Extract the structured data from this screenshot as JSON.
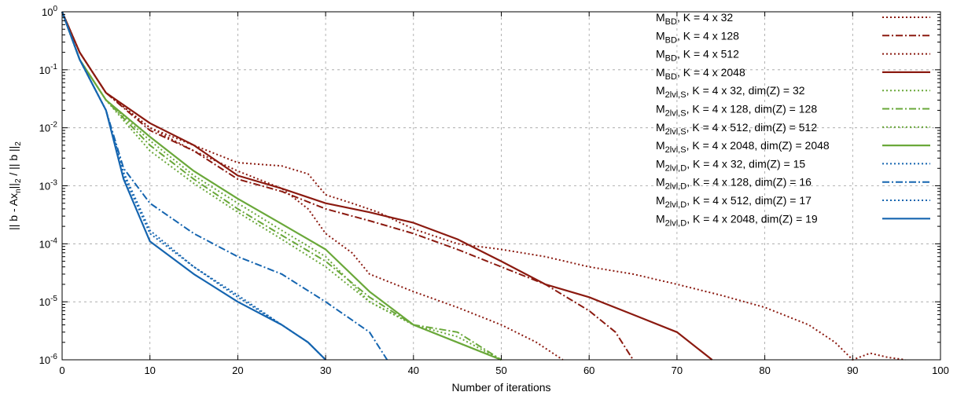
{
  "chart_data": {
    "type": "line",
    "xlabel": "Number of iterations",
    "ylabel": "|| b - Ax_n||_2 / || b ||_2",
    "xlim": [
      0,
      100
    ],
    "ylim": [
      1e-06,
      1
    ],
    "yscale": "log",
    "grid": true,
    "legend_position": "top-right",
    "x_ticks": [
      "0",
      "10",
      "20",
      "30",
      "40",
      "50",
      "60",
      "70",
      "80",
      "90",
      "100"
    ],
    "y_ticks": [
      {
        "base": "10",
        "exp": "0"
      },
      {
        "base": "10",
        "exp": "-1"
      },
      {
        "base": "10",
        "exp": "-2"
      },
      {
        "base": "10",
        "exp": "-3"
      },
      {
        "base": "10",
        "exp": "-4"
      },
      {
        "base": "10",
        "exp": "-5"
      },
      {
        "base": "10",
        "exp": "-6"
      }
    ],
    "colors": {
      "red": "#8b1a10",
      "green": "#6aa83a",
      "blue": "#1565b0"
    },
    "series": [
      {
        "name": "M_BD, K = 4 x 32",
        "label_main": "M",
        "label_sub": "BD",
        "label_rest": ", K = 4 x 32",
        "color": "#8b1a10",
        "dash": "dotted",
        "x": [
          0,
          2,
          5,
          10,
          15,
          20,
          25,
          28,
          30,
          33,
          35,
          40,
          45,
          50,
          54,
          57
        ],
        "y": [
          1,
          0.2,
          0.04,
          0.01,
          0.004,
          0.0018,
          0.0009,
          0.0004,
          0.00015,
          7e-05,
          3e-05,
          1.5e-05,
          8e-06,
          4e-06,
          2e-06,
          1e-06
        ]
      },
      {
        "name": "M_BD, K = 4 x 128",
        "label_main": "M",
        "label_sub": "BD",
        "label_rest": ", K = 4 x 128",
        "color": "#8b1a10",
        "dash": "dashdot",
        "x": [
          0,
          2,
          5,
          10,
          15,
          20,
          25,
          30,
          35,
          40,
          45,
          50,
          55,
          60,
          63,
          65
        ],
        "y": [
          1,
          0.2,
          0.04,
          0.009,
          0.004,
          0.0013,
          0.0008,
          0.0004,
          0.00025,
          0.00015,
          8e-05,
          4e-05,
          2e-05,
          7e-06,
          3e-06,
          1e-06
        ]
      },
      {
        "name": "M_BD, K = 4 x 512",
        "label_main": "M",
        "label_sub": "BD",
        "label_rest": ", K = 4 x 512",
        "color": "#8b1a10",
        "dash": "dotted",
        "x": [
          0,
          2,
          5,
          10,
          15,
          20,
          25,
          28,
          30,
          33,
          36,
          40,
          45,
          50,
          55,
          60,
          65,
          70,
          75,
          80,
          85,
          88,
          90,
          92,
          94,
          96
        ],
        "y": [
          1,
          0.2,
          0.04,
          0.01,
          0.005,
          0.0025,
          0.0022,
          0.0016,
          0.0007,
          0.0005,
          0.00035,
          0.00018,
          0.0001,
          8e-05,
          6e-05,
          4e-05,
          3e-05,
          2e-05,
          1.3e-05,
          8e-06,
          4e-06,
          2e-06,
          1e-06,
          1.3e-06,
          1.1e-06,
          1e-06
        ]
      },
      {
        "name": "M_BD, K = 4 x 2048",
        "label_main": "M",
        "label_sub": "BD",
        "label_rest": ", K = 4 x 2048",
        "color": "#8b1a10",
        "dash": "solid",
        "x": [
          0,
          2,
          5,
          10,
          15,
          20,
          25,
          30,
          35,
          40,
          45,
          50,
          55,
          60,
          65,
          70,
          74
        ],
        "y": [
          1,
          0.2,
          0.04,
          0.012,
          0.005,
          0.0015,
          0.0009,
          0.0005,
          0.00035,
          0.00023,
          0.00012,
          5e-05,
          2e-05,
          1.2e-05,
          6e-06,
          3e-06,
          1e-06
        ]
      },
      {
        "name": "M_2lvl,S, K = 4 x 32, dim(Z) = 32",
        "label_main": "M",
        "label_sub": "2lvl,S",
        "label_rest": ", K = 4 x 32, dim(Z) = 32",
        "color": "#6aa83a",
        "dash": "dotted",
        "x": [
          0,
          2,
          5,
          10,
          15,
          20,
          25,
          30,
          35,
          40,
          45,
          50
        ],
        "y": [
          1,
          0.15,
          0.03,
          0.006,
          0.0015,
          0.0005,
          0.00017,
          6e-05,
          1e-05,
          4e-06,
          2e-06,
          1e-06
        ]
      },
      {
        "name": "M_2lvl,S, K = 4 x 128, dim(Z) = 128",
        "label_main": "M",
        "label_sub": "2lvl,S",
        "label_rest": ", K = 4 x 128, dim(Z) = 128",
        "color": "#6aa83a",
        "dash": "dashdot",
        "x": [
          0,
          2,
          5,
          10,
          15,
          20,
          25,
          30,
          35,
          40,
          45,
          50
        ],
        "y": [
          1,
          0.15,
          0.03,
          0.005,
          0.0013,
          0.0004,
          0.00014,
          5e-05,
          1.2e-05,
          4e-06,
          3e-06,
          1e-06
        ]
      },
      {
        "name": "M_2lvl,S, K = 4 x 512, dim(Z) = 512",
        "label_main": "M",
        "label_sub": "2lvl,S",
        "label_rest": ", K = 4 x 512, dim(Z) = 512",
        "color": "#6aa83a",
        "dash": "dotted",
        "x": [
          0,
          2,
          5,
          10,
          15,
          20,
          25,
          30,
          35,
          40,
          45,
          50
        ],
        "y": [
          1,
          0.15,
          0.03,
          0.004,
          0.0011,
          0.00035,
          0.00012,
          4e-05,
          1e-05,
          4e-06,
          2.5e-06,
          1e-06
        ]
      },
      {
        "name": "M_2lvl,S, K = 4 x 2048, dim(Z) = 2048",
        "label_main": "M",
        "label_sub": "2lvl,S",
        "label_rest": ", K = 4 x 2048, dim(Z) = 2048",
        "color": "#6aa83a",
        "dash": "solid",
        "x": [
          0,
          2,
          5,
          10,
          15,
          20,
          25,
          30,
          35,
          40,
          45,
          50
        ],
        "y": [
          1,
          0.15,
          0.03,
          0.007,
          0.0018,
          0.0006,
          0.00022,
          8e-05,
          1.5e-05,
          4e-06,
          2e-06,
          1e-06
        ]
      },
      {
        "name": "M_2lvl,D, K = 4 x 32, dim(Z) = 15",
        "label_main": "M",
        "label_sub": "2lvl,D",
        "label_rest": ", K = 4 x 32, dim(Z) = 15",
        "color": "#1565b0",
        "dash": "dotted",
        "x": [
          0,
          2,
          5,
          7,
          10,
          15,
          20,
          25,
          28,
          30
        ],
        "y": [
          1,
          0.15,
          0.02,
          0.0015,
          0.00015,
          4e-05,
          1.2e-05,
          4e-06,
          2e-06,
          1e-06
        ]
      },
      {
        "name": "M_2lvl,D, K = 4 x 128, dim(Z) = 16",
        "label_main": "M",
        "label_sub": "2lvl,D",
        "label_rest": ", K = 4 x 128, dim(Z) = 16",
        "color": "#1565b0",
        "dash": "dashdot",
        "x": [
          0,
          2,
          5,
          7,
          10,
          15,
          20,
          25,
          30,
          35,
          37
        ],
        "y": [
          1,
          0.15,
          0.02,
          0.002,
          0.0005,
          0.00015,
          6e-05,
          3e-05,
          1e-05,
          3e-06,
          1e-06
        ]
      },
      {
        "name": "M_2lvl,D, K = 4 x 512, dim(Z) = 17",
        "label_main": "M",
        "label_sub": "2lvl,D",
        "label_rest": ", K = 4 x 512, dim(Z) = 17",
        "color": "#1565b0",
        "dash": "dotted",
        "x": [
          0,
          2,
          5,
          7,
          10,
          15,
          20,
          25,
          28,
          30
        ],
        "y": [
          1,
          0.15,
          0.02,
          0.0017,
          0.00017,
          4e-05,
          1.3e-05,
          4e-06,
          2e-06,
          1e-06
        ]
      },
      {
        "name": "M_2lvl,D, K = 4 x 2048, dim(Z) = 19",
        "label_main": "M",
        "label_sub": "2lvl,D",
        "label_rest": ", K = 4 x 2048, dim(Z) = 19",
        "color": "#1565b0",
        "dash": "solid",
        "x": [
          0,
          2,
          5,
          7,
          10,
          15,
          20,
          25,
          28,
          30
        ],
        "y": [
          1,
          0.15,
          0.02,
          0.0013,
          0.00011,
          3e-05,
          1e-05,
          4e-06,
          2e-06,
          1e-06
        ]
      }
    ]
  }
}
